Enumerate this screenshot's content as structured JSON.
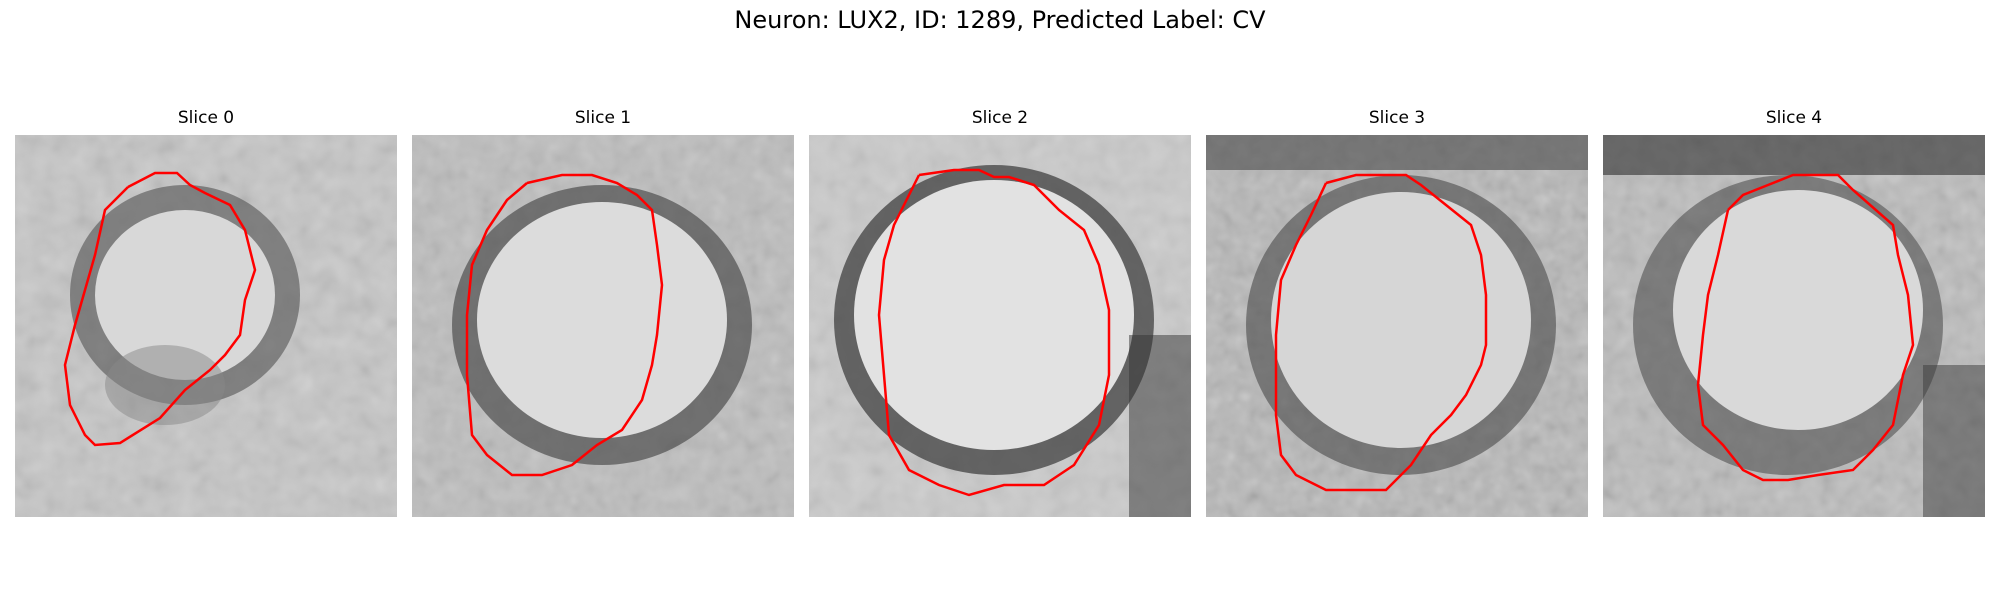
{
  "figure": {
    "title": "Neuron: LUX2, ID: 1289, Predicted Label: CV"
  },
  "slices": [
    {
      "title": "Slice 0"
    },
    {
      "title": "Slice 1"
    },
    {
      "title": "Slice 2"
    },
    {
      "title": "Slice 3"
    },
    {
      "title": "Slice 4"
    }
  ],
  "colors": {
    "contour": "#ff0000",
    "membrane": "#3a3a3a",
    "lumen": "#e6e6e6",
    "background": "#c8c8c8"
  }
}
